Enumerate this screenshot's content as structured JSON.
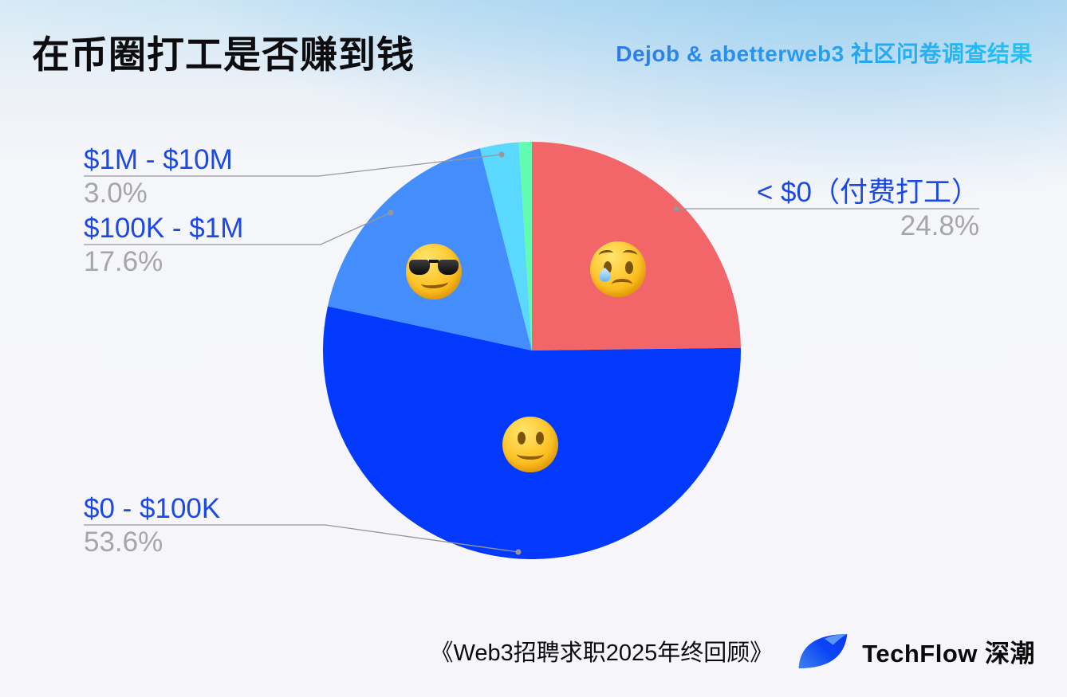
{
  "header": {
    "title": "在币圈打工是否赚到钱",
    "subtitle": "Dejob & abetterweb3 社区问卷调查结果"
  },
  "chart_data": {
    "type": "pie",
    "title": "在币圈打工是否赚到钱",
    "start_angle_deg": 0,
    "direction": "clockwise",
    "unit": "%",
    "legend_position": "callouts",
    "slices": [
      {
        "label": "< $0（付费打工）",
        "value": 24.8,
        "pct_text": "24.8%",
        "color": "#f2666a",
        "emoji": "😢"
      },
      {
        "label": "$0 - $100K",
        "value": 53.6,
        "pct_text": "53.6%",
        "color": "#0339fd",
        "emoji": "🙂"
      },
      {
        "label": "$100K - $1M",
        "value": 17.6,
        "pct_text": "17.6%",
        "color": "#448dfc",
        "emoji": "😎"
      },
      {
        "label": "$1M - $10M",
        "value": 3.0,
        "pct_text": "3.0%",
        "color": "#5bd8fd"
      },
      {
        "label": "",
        "value": 1.0,
        "pct_text": "",
        "color": "#63fbb0"
      }
    ]
  },
  "footer": {
    "source": "《Web3招聘求职2025年终回顾》",
    "brand": "TechFlow 深潮"
  },
  "colors": {
    "label_blue": "#1b49e3",
    "percent_gray": "#a6a6aa",
    "leader_line_gray": "#96969b",
    "subtitle_gradient_start": "#2d7ae8",
    "subtitle_gradient_end": "#24c3f4",
    "background_top": "#d9ebf6",
    "background_main": "#f6f6fa"
  }
}
